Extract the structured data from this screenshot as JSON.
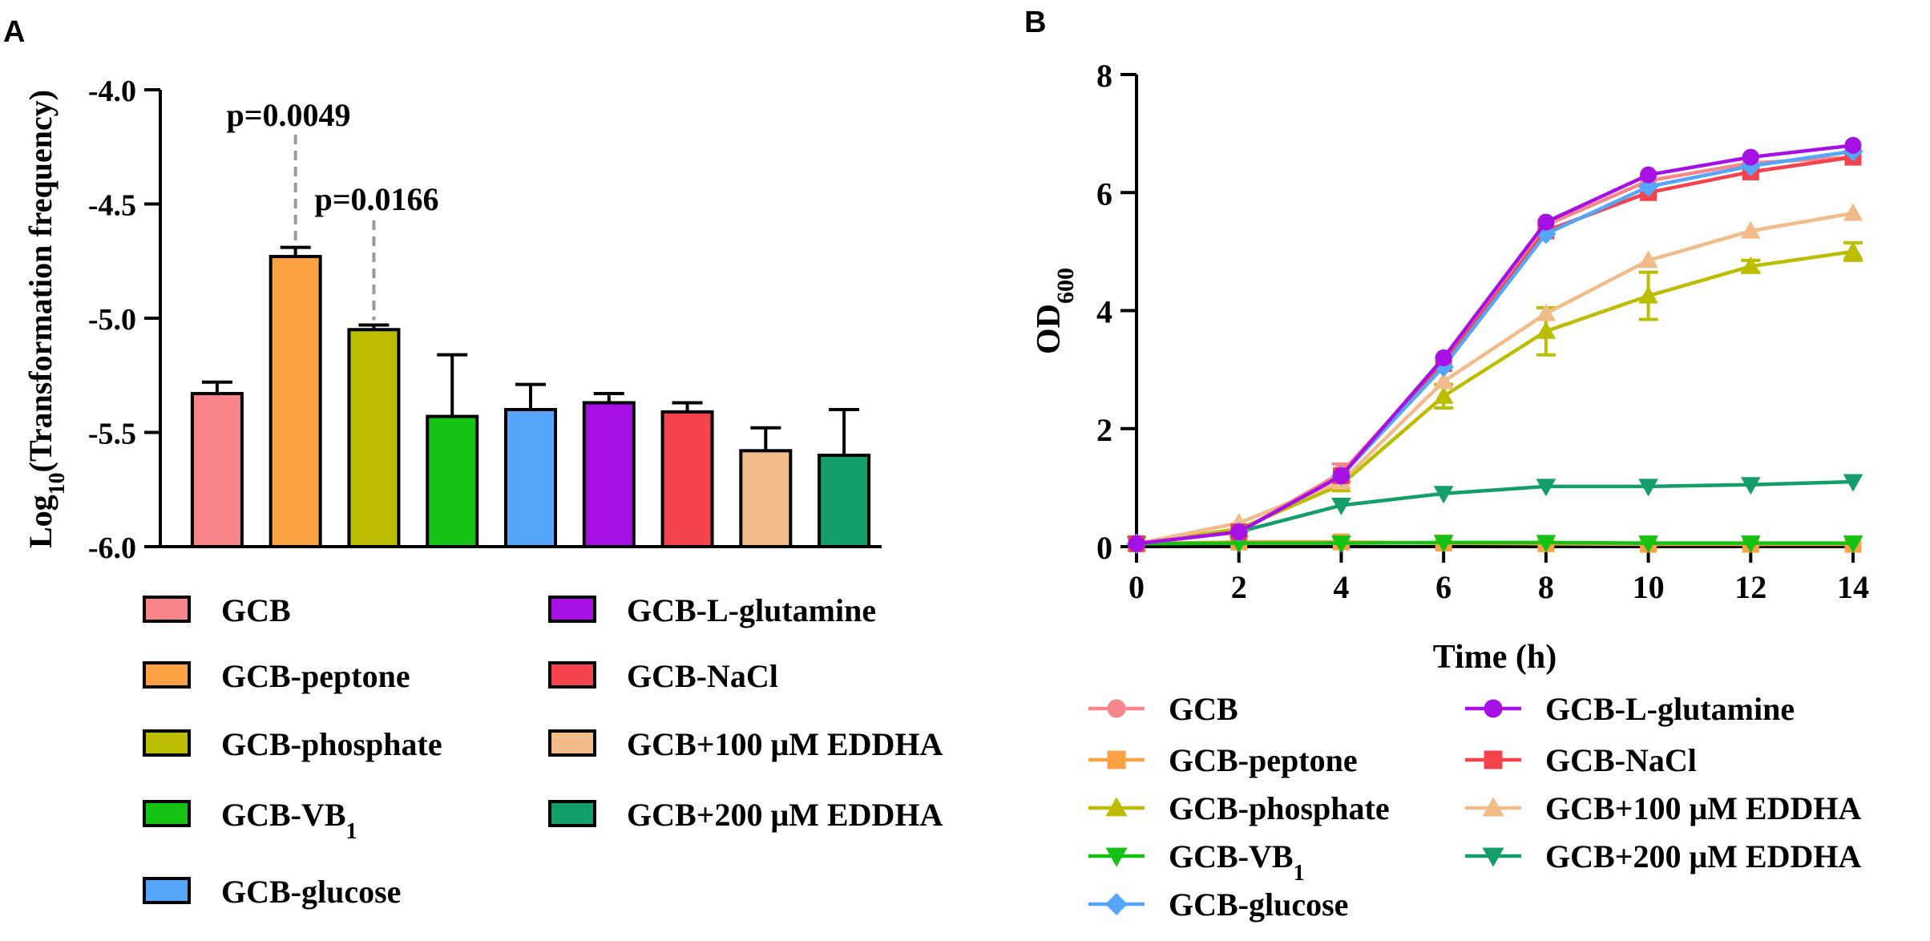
{
  "chart_data": [
    {
      "panel": "A",
      "type": "bar",
      "ylabel_main": "Log",
      "ylabel_sub": "10",
      "ylabel_rest": "(Transformation frequency)",
      "xlabel": "",
      "ylim": [
        -6.0,
        -4.0
      ],
      "yticks": [
        "-4.0",
        "-4.5",
        "-5.0",
        "-5.5",
        "-6.0"
      ],
      "ytick_values": [
        -4.0,
        -4.5,
        -5.0,
        -5.5,
        -6.0
      ],
      "bars": [
        {
          "name": "GCB",
          "value": -5.33,
          "error": 0.05,
          "color": "#F8858A"
        },
        {
          "name": "GCB-peptone",
          "value": -4.73,
          "error": 0.04,
          "color": "#FAA243"
        },
        {
          "name": "GCB-phosphate",
          "value": -5.05,
          "error": 0.02,
          "color": "#BDBD00"
        },
        {
          "name": "GCB-VB",
          "value": -5.43,
          "error": 0.27,
          "color": "#13C213"
        },
        {
          "name": "GCB-glucose",
          "value": -5.4,
          "error": 0.11,
          "color": "#55A6FA"
        },
        {
          "name": "GCB-L-glutamine",
          "value": -5.37,
          "error": 0.04,
          "color": "#A710E4"
        },
        {
          "name": "GCB-NaCl",
          "value": -5.41,
          "error": 0.04,
          "color": "#F4434C"
        },
        {
          "name": "GCB+100 μM EDDHA",
          "value": -5.58,
          "error": 0.1,
          "color": "#F2BB8A"
        },
        {
          "name": "GCB+200 μM EDDHA",
          "value": -5.6,
          "error": 0.2,
          "color": "#149E6A"
        }
      ],
      "annotations": [
        {
          "text": "p=0.0049",
          "bar_index": 1
        },
        {
          "text": "p=0.0166",
          "bar_index": 2
        }
      ],
      "legend": [
        {
          "label": "GCB",
          "sub": "",
          "color": "#F8858A"
        },
        {
          "label": "GCB-peptone",
          "sub": "",
          "color": "#FAA243"
        },
        {
          "label": "GCB-phosphate",
          "sub": "",
          "color": "#BDBD00"
        },
        {
          "label": "GCB-VB",
          "sub": "1",
          "color": "#13C213"
        },
        {
          "label": "GCB-glucose",
          "sub": "",
          "color": "#55A6FA"
        },
        {
          "label": "GCB-L-glutamine",
          "sub": "",
          "color": "#A710E4"
        },
        {
          "label": "GCB-NaCl",
          "sub": "",
          "color": "#F4434C"
        },
        {
          "label": "GCB+100 μM EDDHA",
          "sub": "",
          "color": "#F2BB8A"
        },
        {
          "label": "GCB+200 μM EDDHA",
          "sub": "",
          "color": "#149E6A"
        }
      ]
    },
    {
      "panel": "B",
      "type": "line",
      "xlabel": "Time (h)",
      "ylabel_main": "OD",
      "ylabel_sub": "600",
      "x": [
        0,
        2,
        4,
        6,
        8,
        10,
        12,
        14
      ],
      "xlim": [
        0,
        14
      ],
      "ylim": [
        0,
        8
      ],
      "xticks": [
        "0",
        "2",
        "4",
        "6",
        "8",
        "10",
        "12",
        "14"
      ],
      "yticks": [
        "0",
        "2",
        "4",
        "6",
        "8"
      ],
      "series": [
        {
          "name": "GCB",
          "sub": "",
          "marker": "circle",
          "color": "#F8858A",
          "values": [
            0.05,
            0.25,
            1.25,
            3.15,
            5.45,
            6.2,
            6.5,
            6.6
          ],
          "errors": [
            0,
            0,
            0.15,
            0,
            0,
            0,
            0,
            0
          ]
        },
        {
          "name": "GCB-peptone",
          "sub": "",
          "marker": "square",
          "color": "#FAA243",
          "values": [
            0.05,
            0.08,
            0.08,
            0.06,
            0.05,
            0.04,
            0.04,
            0.04
          ],
          "errors": [
            0,
            0,
            0,
            0,
            0,
            0,
            0,
            0
          ]
        },
        {
          "name": "GCB-phosphate",
          "sub": "",
          "marker": "triangle-up",
          "color": "#BDBD00",
          "values": [
            0.05,
            0.3,
            1.05,
            2.55,
            3.65,
            4.25,
            4.75,
            5.0
          ],
          "errors": [
            0,
            0,
            0,
            0.2,
            0.4,
            0.4,
            0.1,
            0.15
          ]
        },
        {
          "name": "GCB-VB",
          "sub": "1",
          "marker": "triangle-down",
          "color": "#13C213",
          "values": [
            0.05,
            0.06,
            0.06,
            0.07,
            0.07,
            0.06,
            0.06,
            0.06
          ],
          "errors": [
            0,
            0,
            0,
            0,
            0,
            0,
            0,
            0
          ]
        },
        {
          "name": "GCB-glucose",
          "sub": "",
          "marker": "diamond",
          "color": "#55A6FA",
          "values": [
            0.05,
            0.25,
            1.2,
            3.05,
            5.3,
            6.1,
            6.45,
            6.7
          ],
          "errors": [
            0,
            0,
            0,
            0,
            0,
            0,
            0,
            0
          ]
        },
        {
          "name": "GCB-L-glutamine",
          "sub": "",
          "marker": "circle",
          "color": "#A710E4",
          "values": [
            0.05,
            0.25,
            1.2,
            3.2,
            5.5,
            6.3,
            6.6,
            6.8
          ],
          "errors": [
            0,
            0,
            0,
            0,
            0,
            0,
            0,
            0
          ]
        },
        {
          "name": "GCB-NaCl",
          "sub": "",
          "marker": "square",
          "color": "#F4434C",
          "values": [
            0.05,
            0.25,
            1.2,
            3.1,
            5.35,
            6.0,
            6.35,
            6.6
          ],
          "errors": [
            0,
            0,
            0,
            0,
            0,
            0,
            0,
            0
          ]
        },
        {
          "name": "GCB+100 μM EDDHA",
          "sub": "",
          "marker": "triangle-up",
          "color": "#F2BB8A",
          "values": [
            0.05,
            0.4,
            1.1,
            2.8,
            3.95,
            4.85,
            5.35,
            5.65
          ],
          "errors": [
            0,
            0,
            0,
            0,
            0,
            0,
            0,
            0
          ]
        },
        {
          "name": "GCB+200 μM EDDHA",
          "sub": "",
          "marker": "triangle-down",
          "color": "#149E6A",
          "values": [
            0.05,
            0.25,
            0.7,
            0.9,
            1.02,
            1.02,
            1.05,
            1.1
          ],
          "errors": [
            0,
            0,
            0,
            0,
            0,
            0,
            0,
            0
          ]
        }
      ]
    }
  ]
}
